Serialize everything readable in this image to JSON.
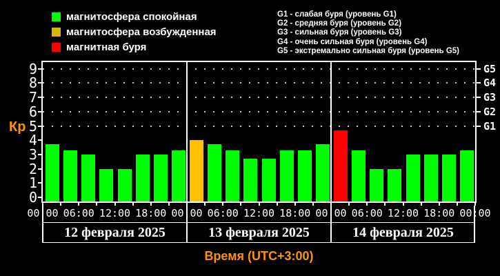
{
  "legend": {
    "items": [
      {
        "label": "магнитосфера спокойная",
        "color": "#00ff00"
      },
      {
        "label": "магнитосфера возбужденная",
        "color": "#d2ba00"
      },
      {
        "label": "магнитная буря",
        "color": "#ff0000"
      }
    ]
  },
  "storm_levels": {
    "lines": [
      "G1 - слабая буря (уровень G1)",
      "G2 - средняя буря (уровень G2)",
      "G3 - сильная буря (уровень G3)",
      "G4 - очень сильная буря (уровень G4)",
      "G5 - экстремально сильная буря (уровень G5)"
    ]
  },
  "chart_data": {
    "type": "bar",
    "ylabel": "Кр",
    "xlabel": "Время (UTC+3:00)",
    "ylim": [
      0,
      9.7
    ],
    "y_ticks": [
      0,
      1,
      2,
      3,
      4,
      5,
      6,
      7,
      8,
      9
    ],
    "grid_dotted_at_kp": [
      5,
      6,
      7,
      8,
      9
    ],
    "right_axis_labels": [
      {
        "label": "G1",
        "kp": 5
      },
      {
        "label": "G2",
        "kp": 6
      },
      {
        "label": "G3",
        "kp": 7
      },
      {
        "label": "G4",
        "kp": 8
      },
      {
        "label": "G5",
        "kp": 9
      }
    ],
    "x_tick_labels": [
      "00:00",
      "06:00",
      "12:00",
      "18:00",
      "00:00",
      "06:00",
      "12:00",
      "18:00",
      "00:00",
      "06:00",
      "12:00",
      "18:00",
      "00:00"
    ],
    "bar_interval_hours": 3,
    "status_colors": {
      "quiet": "#00ff00",
      "excited": "#ffc000",
      "storm": "#ff0000"
    },
    "days": [
      {
        "date": "12 февраля 2025",
        "values": [
          3.7,
          3.3,
          3.0,
          2.0,
          2.0,
          3.0,
          3.0,
          3.3
        ],
        "statuses": [
          "quiet",
          "quiet",
          "quiet",
          "quiet",
          "quiet",
          "quiet",
          "quiet",
          "quiet"
        ]
      },
      {
        "date": "13 февраля 2025",
        "values": [
          4.0,
          3.7,
          3.3,
          2.7,
          2.7,
          3.3,
          3.3,
          3.7
        ],
        "statuses": [
          "excited",
          "quiet",
          "quiet",
          "quiet",
          "quiet",
          "quiet",
          "quiet",
          "quiet"
        ]
      },
      {
        "date": "14 февраля 2025",
        "values": [
          4.7,
          3.3,
          2.0,
          2.0,
          3.0,
          3.0,
          3.0,
          3.3
        ],
        "statuses": [
          "storm",
          "quiet",
          "quiet",
          "quiet",
          "quiet",
          "quiet",
          "quiet",
          "quiet"
        ]
      }
    ]
  }
}
